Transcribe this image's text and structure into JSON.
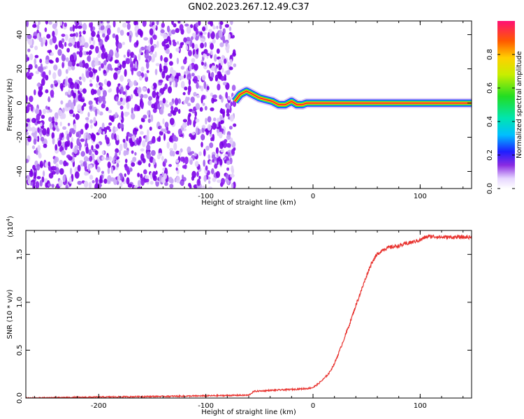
{
  "title": "GN02.2023.267.12.49.C37",
  "colors": {
    "scatter_dark": "#7a00e6",
    "scatter_light": "#d9c2f7",
    "snr_line": "#e8322e"
  },
  "chart_data": [
    {
      "type": "heatmap",
      "xlabel": "Height of straight line (km)",
      "ylabel": "Frequency (Hz)",
      "xlim": [
        -268,
        148
      ],
      "ylim": [
        -50,
        48
      ],
      "xticks": [
        -200,
        -100,
        0,
        100
      ],
      "xtick_labels": [
        "-200",
        "-100",
        "0",
        "100"
      ],
      "yticks": [
        -40,
        -20,
        0,
        20,
        40
      ],
      "ytick_labels": [
        "-40",
        "-20",
        "0",
        "20",
        "40"
      ],
      "noise_region_x": [
        -268,
        -73
      ],
      "ridge_x": [
        -73,
        -68,
        -62,
        -56,
        -50,
        -44,
        -38,
        -32,
        -26,
        -20,
        -15,
        -10,
        -6,
        148
      ],
      "ridge_y": [
        1,
        5,
        7,
        5,
        3,
        2,
        1,
        -1,
        -1,
        1,
        -1,
        -1,
        0,
        0
      ],
      "colorbar": {
        "label": "Normalized spectral amplitude",
        "range": [
          0,
          1
        ],
        "ticks": [
          0.0,
          0.2,
          0.4,
          0.6,
          0.8
        ],
        "tick_labels": [
          "0.0",
          "0.2",
          "0.4",
          "0.6",
          "0.8"
        ]
      }
    },
    {
      "type": "line",
      "xlabel": "Height of straight line (km)",
      "ylabel": "SNR (10 * v/v)",
      "y_multiplier": "(x10",
      "y_multiplier_exp": "4",
      "y_multiplier_close": ")",
      "xlim": [
        -268,
        148
      ],
      "ylim": [
        0,
        1.75
      ],
      "xticks": [
        -200,
        -100,
        0,
        100
      ],
      "xtick_labels": [
        "-200",
        "-100",
        "0",
        "100"
      ],
      "yticks": [
        0.0,
        0.5,
        1.0,
        1.5
      ],
      "ytick_labels": [
        "0.0",
        "0.5",
        "1.0",
        "1.5"
      ],
      "x": [
        -268,
        -200,
        -120,
        -60,
        -55,
        -40,
        -20,
        -5,
        0,
        5,
        10,
        15,
        20,
        25,
        30,
        35,
        40,
        45,
        50,
        55,
        60,
        65,
        70,
        80,
        90,
        100,
        105,
        110,
        120,
        130,
        148
      ],
      "y": [
        0.0,
        0.01,
        0.02,
        0.03,
        0.07,
        0.08,
        0.09,
        0.1,
        0.11,
        0.15,
        0.2,
        0.26,
        0.36,
        0.5,
        0.65,
        0.8,
        0.97,
        1.12,
        1.28,
        1.42,
        1.5,
        1.55,
        1.57,
        1.59,
        1.62,
        1.65,
        1.68,
        1.69,
        1.68,
        1.68,
        1.68
      ]
    }
  ]
}
